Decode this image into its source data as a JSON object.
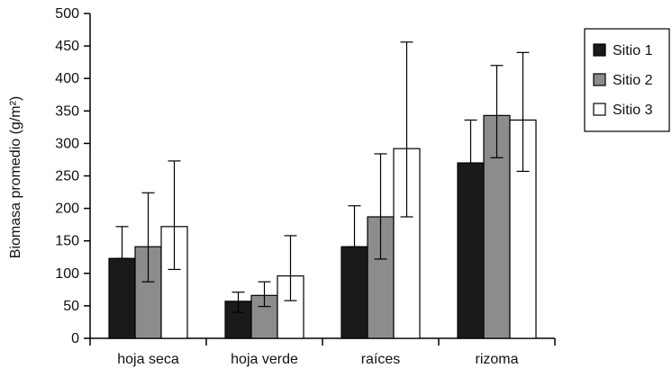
{
  "chart_data": {
    "type": "bar",
    "title": "",
    "xlabel": "",
    "ylabel": "Biomasa promedio (g/m²)",
    "ylim": [
      0,
      500
    ],
    "yticks": [
      0,
      50,
      100,
      150,
      200,
      250,
      300,
      350,
      400,
      450,
      500
    ],
    "categories": [
      "hoja seca",
      "hoja verde",
      "raíces",
      "rizoma"
    ],
    "series": [
      {
        "name": "Sitio 1",
        "color": "#1a1a1a",
        "values": [
          123,
          57,
          141,
          270
        ],
        "error_low": [
          123,
          40,
          141,
          270
        ],
        "error_high": [
          172,
          71,
          204,
          336
        ]
      },
      {
        "name": "Sitio 2",
        "color": "#8c8c8c",
        "values": [
          141,
          66,
          187,
          343
        ],
        "error_low": [
          87,
          49,
          122,
          278
        ],
        "error_high": [
          224,
          87,
          284,
          420
        ]
      },
      {
        "name": "Sitio 3",
        "color": "#ffffff",
        "values": [
          172,
          96,
          292,
          336
        ],
        "error_low": [
          106,
          58,
          187,
          257
        ],
        "error_high": [
          273,
          158,
          456,
          440
        ]
      }
    ],
    "legend_position": "top-right",
    "grid": false
  }
}
